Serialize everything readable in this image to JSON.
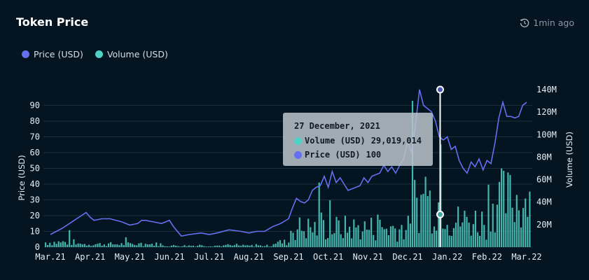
{
  "header": {
    "title": "Token Price",
    "updated": "1min ago"
  },
  "legend": [
    {
      "label": "Price (USD)",
      "color": "#6470f0"
    },
    {
      "label": "Volume (USD)",
      "color": "#4fd1c5"
    }
  ],
  "tooltip": {
    "date": "27 December, 2021",
    "volume_label": "Volume (USD)",
    "volume_value": "29,019,014",
    "price_label": "Price (USD)",
    "price_value": "100"
  },
  "chart_data": {
    "type": "line+bar",
    "xlabels": [
      "Mar.21",
      "Apr.21",
      "May.21",
      "Jun.21",
      "Jul.21",
      "Aug.21",
      "Sep.21",
      "Oct.21",
      "Nov.21",
      "Dec.21",
      "Jan.22",
      "Feb.22",
      "Mar.22"
    ],
    "ylabel_left": "Price (USD)",
    "ylabel_right": "Volume (USD)",
    "ylim_left": [
      0,
      100
    ],
    "yticks_left": [
      0,
      10,
      20,
      30,
      40,
      50,
      60,
      70,
      80,
      90
    ],
    "ylim_right": [
      0,
      140000000
    ],
    "yticks_right_labels": [
      "20M",
      "40M",
      "60M",
      "80M",
      "100M",
      "120M",
      "140M"
    ],
    "series": [
      {
        "name": "Price (USD)",
        "type": "line",
        "color": "#6470f0",
        "x": [
          0,
          0.3,
          0.6,
          0.9,
          1.0,
          1.1,
          1.3,
          1.5,
          1.8,
          2.0,
          2.2,
          2.4,
          2.6,
          2.8,
          3.0,
          2.3,
          3.1,
          3.3,
          3.5,
          3.8,
          4.0,
          4.2,
          4.5,
          4.8,
          5.0,
          5.2,
          5.4,
          5.6,
          5.8,
          6.0,
          6.1,
          6.2,
          6.3,
          6.4,
          6.5,
          6.6,
          6.7,
          6.8,
          6.9,
          7.0,
          7.1,
          7.2,
          7.3,
          7.4,
          7.5,
          7.6,
          7.7,
          7.8,
          7.9,
          8.0,
          8.1,
          8.2,
          8.3,
          8.4,
          8.5,
          8.6,
          8.7,
          8.8,
          8.9,
          9.0,
          9.1,
          9.2,
          9.3,
          9.4,
          9.5,
          9.6,
          9.7,
          9.8,
          9.9,
          10.0,
          10.1,
          10.2,
          10.3,
          10.4,
          10.5,
          10.6,
          10.7,
          10.8,
          10.9,
          11.0,
          11.1,
          11.2,
          11.3,
          11.4,
          11.5,
          11.6,
          11.7,
          11.8,
          11.9,
          12.0
        ],
        "values": [
          8,
          12,
          17,
          22,
          19,
          17,
          18,
          18,
          16,
          14,
          15,
          17,
          16,
          15,
          17,
          17,
          13,
          7,
          8,
          9,
          8,
          9,
          11,
          10,
          9,
          10,
          10,
          13,
          15,
          18,
          25,
          31,
          29,
          28,
          30,
          36,
          38,
          39,
          45,
          38,
          48,
          41,
          44,
          40,
          36,
          37,
          38,
          39,
          44,
          41,
          45,
          46,
          47,
          52,
          48,
          51,
          47,
          52,
          56,
          67,
          60,
          78,
          100,
          90,
          88,
          86,
          80,
          70,
          68,
          70,
          62,
          64,
          55,
          50,
          47,
          54,
          51,
          56,
          49,
          55,
          53,
          66,
          82,
          92,
          83,
          83,
          82,
          83,
          90,
          92
        ]
      },
      {
        "name": "Volume (USD)",
        "type": "bar",
        "color": "#4fd1c5",
        "note": "daily volume bars, peaks ~130M near Dec.21"
      }
    ],
    "highlight": {
      "date": "27 December, 2021",
      "price": 100,
      "volume": 29019014
    }
  }
}
